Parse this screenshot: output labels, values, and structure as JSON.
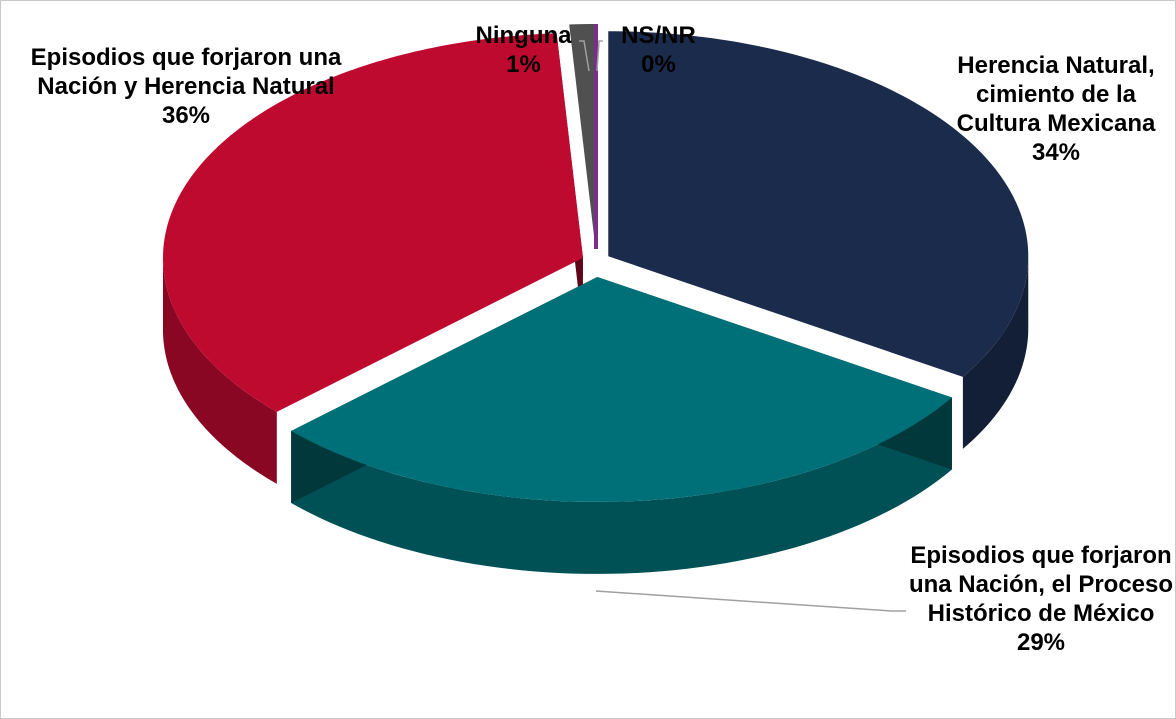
{
  "chart_data": {
    "type": "pie",
    "categories": [
      "Herencia Natural, cimiento de la Cultura Mexicana",
      "Episodios que forjaron una Nación, el Proceso Histórico de México",
      "Episodios que forjaron una Nación y Herencia Natural",
      "Ninguna",
      "NS/NR"
    ],
    "values": [
      34,
      29,
      36,
      1,
      0
    ],
    "value_labels": [
      "34%",
      "29%",
      "36%",
      "1%",
      "0%"
    ],
    "colors": [
      "#1b2b4b",
      "#007078",
      "#bf0a30",
      "#505050",
      "#7a2d8f"
    ]
  }
}
